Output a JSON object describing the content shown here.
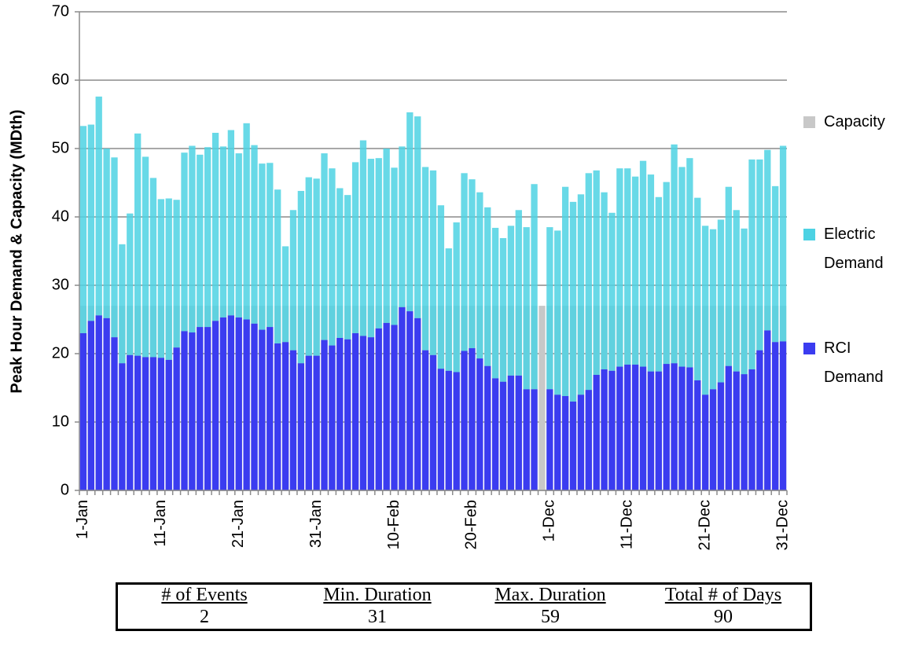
{
  "chart_data": {
    "type": "bar",
    "y_label": "Peak Hour Demand & Capacity (MDth)",
    "categories": [
      "1-Jan",
      null,
      null,
      null,
      null,
      null,
      null,
      null,
      null,
      null,
      "11-Jan",
      null,
      null,
      null,
      null,
      null,
      null,
      null,
      null,
      null,
      "21-Jan",
      null,
      null,
      null,
      null,
      null,
      null,
      null,
      null,
      null,
      "31-Jan",
      null,
      null,
      null,
      null,
      null,
      null,
      null,
      null,
      null,
      "10-Feb",
      null,
      null,
      null,
      null,
      null,
      null,
      null,
      null,
      null,
      "20-Feb",
      null,
      null,
      null,
      null,
      null,
      null,
      null,
      null,
      null,
      "1-Dec",
      null,
      null,
      null,
      null,
      null,
      null,
      null,
      null,
      null,
      "11-Dec",
      null,
      null,
      null,
      null,
      null,
      null,
      null,
      null,
      null,
      "21-Dec",
      null,
      null,
      null,
      null,
      null,
      null,
      null,
      null,
      null,
      "31-Dec"
    ],
    "series": [
      {
        "name": "Capacity",
        "color": "#c8c8c8",
        "values": [
          27,
          27,
          27,
          27,
          27,
          27,
          27,
          27,
          27,
          27,
          27,
          27,
          27,
          27,
          27,
          27,
          27,
          27,
          27,
          27,
          27,
          27,
          27,
          27,
          27,
          27,
          27,
          27,
          27,
          27,
          27,
          27,
          27,
          27,
          27,
          27,
          27,
          27,
          27,
          27,
          27,
          27,
          27,
          27,
          27,
          27,
          27,
          27,
          27,
          27,
          27,
          27,
          27,
          27,
          27,
          27,
          27,
          27,
          27,
          27,
          27,
          27,
          27,
          27,
          27,
          27,
          27,
          27,
          27,
          27,
          27,
          27,
          27,
          27,
          27,
          27,
          27,
          27,
          27,
          27,
          27,
          27,
          27,
          27,
          27,
          27,
          27,
          27,
          27,
          27,
          27
        ]
      },
      {
        "name": "Electric Demand",
        "color": "#4dd2e3",
        "values": [
          30.3,
          28.7,
          32.0,
          24.8,
          26.3,
          17.4,
          20.7,
          32.5,
          29.3,
          26.2,
          23.2,
          23.6,
          21.6,
          26.1,
          27.3,
          25.2,
          26.3,
          27.5,
          25.0,
          27.1,
          24.0,
          28.7,
          26.1,
          24.3,
          24.0,
          22.5,
          14.0,
          20.5,
          25.2,
          26.1,
          25.9,
          27.3,
          25.9,
          21.9,
          21.1,
          25.0,
          28.6,
          26.1,
          24.9,
          25.5,
          23.0,
          23.5,
          29.1,
          29.5,
          26.8,
          27.0,
          23.9,
          17.9,
          21.9,
          26.0,
          24.7,
          24.3,
          23.2,
          22.0,
          21.0,
          21.9,
          24.2,
          23.7,
          30.0,
          null,
          23.7,
          24.0,
          30.6,
          29.2,
          29.3,
          31.7,
          29.9,
          25.9,
          23.1,
          29.0,
          28.7,
          27.5,
          30.1,
          28.8,
          25.5,
          26.6,
          32.0,
          29.2,
          30.6,
          26.7,
          24.7,
          23.4,
          23.8,
          26.2,
          23.6,
          21.3,
          30.7,
          27.9,
          26.4,
          22.8,
          28.6
        ]
      },
      {
        "name": "RCI Demand",
        "color": "#3b3cf0",
        "values": [
          23,
          24.8,
          25.6,
          25.2,
          22.4,
          18.6,
          19.8,
          19.7,
          19.5,
          19.5,
          19.4,
          19.1,
          20.9,
          23.3,
          23.1,
          23.9,
          23.9,
          24.8,
          25.3,
          25.6,
          25.3,
          25,
          24.4,
          23.5,
          23.9,
          21.5,
          21.7,
          20.5,
          18.6,
          19.7,
          19.7,
          22,
          21.2,
          22.3,
          22.1,
          23,
          22.6,
          22.4,
          23.7,
          24.5,
          24.2,
          26.8,
          26.2,
          25.2,
          20.5,
          19.8,
          17.8,
          17.5,
          17.3,
          20.4,
          20.8,
          19.3,
          18.2,
          16.4,
          15.9,
          16.8,
          16.8,
          14.8,
          14.8,
          null,
          14.8,
          14,
          13.8,
          13,
          14,
          14.7,
          16.9,
          17.7,
          17.5,
          18.1,
          18.4,
          18.4,
          18.1,
          17.4,
          17.4,
          18.5,
          18.6,
          18.1,
          18,
          16.1,
          14,
          14.8,
          15.8,
          18.2,
          17.4,
          17,
          17.7,
          20.5,
          23.4,
          21.7,
          21.8
        ]
      }
    ],
    "ylim": [
      0,
      70
    ],
    "yticks": [
      0,
      10,
      20,
      30,
      40,
      50,
      60,
      70
    ],
    "grid": true,
    "legend": "right"
  },
  "table": {
    "header": [
      "# of Events",
      "Min. Duration",
      "Max. Duration",
      "Total # of Days"
    ],
    "rows": [
      [
        2,
        31,
        59,
        90
      ]
    ]
  }
}
